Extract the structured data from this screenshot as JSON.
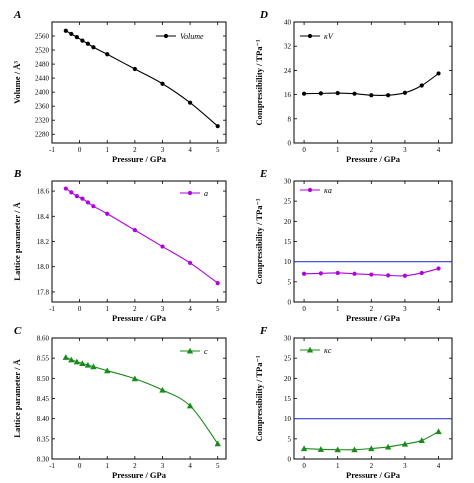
{
  "chart_data": [
    {
      "panel": "A",
      "type": "line",
      "xlabel": "Pressure / GPa",
      "ylabel": "Volume / Å³",
      "xlim": [
        -1,
        5.3
      ],
      "ylim": [
        2255,
        2600
      ],
      "xticks": [
        "-1",
        "0",
        "1",
        "2",
        "3",
        "4",
        "5"
      ],
      "yticks": [
        "2280",
        "2320",
        "2360",
        "2400",
        "2440",
        "2480",
        "2520",
        "2560"
      ],
      "ytick_values": [
        2280,
        2320,
        2360,
        2400,
        2440,
        2480,
        2520,
        2560
      ],
      "xtick_values": [
        -1,
        0,
        1,
        2,
        3,
        4,
        5
      ],
      "color": "#000000",
      "marker": "circle",
      "series": [
        {
          "name": "Volume",
          "x": [
            -0.5,
            -0.3,
            -0.1,
            0.1,
            0.3,
            0.5,
            1,
            2,
            3,
            4,
            5
          ],
          "y": [
            2575,
            2566,
            2557,
            2547,
            2538,
            2528,
            2508,
            2466,
            2424,
            2370,
            2303
          ]
        }
      ],
      "hline": null
    },
    {
      "panel": "D",
      "type": "line",
      "xlabel": "Pressure / GPa",
      "ylabel": "Compressibility / TPa⁻¹",
      "xlim": [
        -0.3,
        4.4
      ],
      "ylim": [
        0,
        40
      ],
      "xticks": [
        "0",
        "1",
        "2",
        "3",
        "4"
      ],
      "xtick_values": [
        0,
        1,
        2,
        3,
        4
      ],
      "yticks": [
        "0",
        "8",
        "16",
        "24",
        "32",
        "40"
      ],
      "ytick_values": [
        0,
        8,
        16,
        24,
        32,
        40
      ],
      "color": "#000000",
      "marker": "circle",
      "series": [
        {
          "name": "κV",
          "x": [
            0,
            0.5,
            1,
            1.5,
            2,
            2.5,
            3,
            3.5,
            4
          ],
          "y": [
            16.3,
            16.4,
            16.5,
            16.3,
            15.8,
            15.8,
            16.6,
            19.0,
            23.0
          ]
        }
      ],
      "hline": null
    },
    {
      "panel": "B",
      "type": "line",
      "xlabel": "Pressure / GPa",
      "ylabel": "Lattice parameter / Å",
      "xlim": [
        -1,
        5.3
      ],
      "ylim": [
        17.72,
        18.68
      ],
      "xticks": [
        "-1",
        "0",
        "1",
        "2",
        "3",
        "4",
        "5"
      ],
      "xtick_values": [
        -1,
        0,
        1,
        2,
        3,
        4,
        5
      ],
      "yticks": [
        "17.8",
        "18.0",
        "18.2",
        "18.4",
        "18.6"
      ],
      "ytick_values": [
        17.8,
        18.0,
        18.2,
        18.4,
        18.6
      ],
      "color": "#b000e0",
      "marker": "circle",
      "series": [
        {
          "name": "a",
          "x": [
            -0.5,
            -0.3,
            -0.1,
            0.1,
            0.3,
            0.5,
            1,
            2,
            3,
            4,
            5
          ],
          "y": [
            18.62,
            18.59,
            18.56,
            18.54,
            18.51,
            18.48,
            18.42,
            18.29,
            18.16,
            18.03,
            17.87
          ]
        }
      ],
      "hline": null
    },
    {
      "panel": "E",
      "type": "line",
      "xlabel": "Pressure / GPa",
      "ylabel": "Compressibility / TPa⁻¹",
      "xlim": [
        -0.3,
        4.4
      ],
      "ylim": [
        0,
        30
      ],
      "xticks": [
        "0",
        "1",
        "2",
        "3",
        "4"
      ],
      "xtick_values": [
        0,
        1,
        2,
        3,
        4
      ],
      "yticks": [
        "0",
        "5",
        "10",
        "15",
        "20",
        "25",
        "30"
      ],
      "ytick_values": [
        0,
        5,
        10,
        15,
        20,
        25,
        30
      ],
      "color": "#b000e0",
      "marker": "circle",
      "series": [
        {
          "name": "κa",
          "x": [
            0,
            0.5,
            1,
            1.5,
            2,
            2.5,
            3,
            3.5,
            4
          ],
          "y": [
            7.0,
            7.1,
            7.2,
            7.0,
            6.8,
            6.6,
            6.5,
            7.2,
            8.3
          ]
        }
      ],
      "hline": {
        "y": 10,
        "color": "#3344cc"
      }
    },
    {
      "panel": "C",
      "type": "line",
      "xlabel": "Pressure / GPa",
      "ylabel": "Lattice parameter / Å",
      "xlim": [
        -1,
        5.3
      ],
      "ylim": [
        8.3,
        8.6
      ],
      "xticks": [
        "-1",
        "0",
        "1",
        "2",
        "3",
        "4",
        "5"
      ],
      "xtick_values": [
        -1,
        0,
        1,
        2,
        3,
        4,
        5
      ],
      "yticks": [
        "8.30",
        "8.35",
        "8.40",
        "8.45",
        "8.50",
        "8.55",
        "8.60"
      ],
      "ytick_values": [
        8.3,
        8.35,
        8.4,
        8.45,
        8.5,
        8.55,
        8.6
      ],
      "color": "#1a8a1a",
      "marker": "triangle",
      "series": [
        {
          "name": "c",
          "x": [
            -0.5,
            -0.3,
            -0.1,
            0.1,
            0.3,
            0.5,
            1,
            2,
            3,
            4,
            5
          ],
          "y": [
            8.552,
            8.546,
            8.541,
            8.537,
            8.533,
            8.529,
            8.519,
            8.499,
            8.471,
            8.432,
            8.338
          ]
        }
      ],
      "hline": null
    },
    {
      "panel": "F",
      "type": "line",
      "xlabel": "Pressure / GPa",
      "ylabel": "Compressibility / TPa⁻¹",
      "xlim": [
        -0.3,
        4.4
      ],
      "ylim": [
        0,
        30
      ],
      "xticks": [
        "0",
        "1",
        "2",
        "3",
        "4"
      ],
      "xtick_values": [
        0,
        1,
        2,
        3,
        4
      ],
      "yticks": [
        "0",
        "5",
        "10",
        "15",
        "20",
        "25",
        "30"
      ],
      "ytick_values": [
        0,
        5,
        10,
        15,
        20,
        25,
        30
      ],
      "color": "#1a8a1a",
      "marker": "triangle",
      "series": [
        {
          "name": "κc",
          "x": [
            0,
            0.5,
            1,
            1.5,
            2,
            2.5,
            3,
            3.5,
            4
          ],
          "y": [
            2.6,
            2.4,
            2.3,
            2.3,
            2.6,
            3.0,
            3.7,
            4.6,
            6.8
          ]
        }
      ],
      "hline": {
        "y": 10,
        "color": "#3344cc"
      }
    }
  ]
}
